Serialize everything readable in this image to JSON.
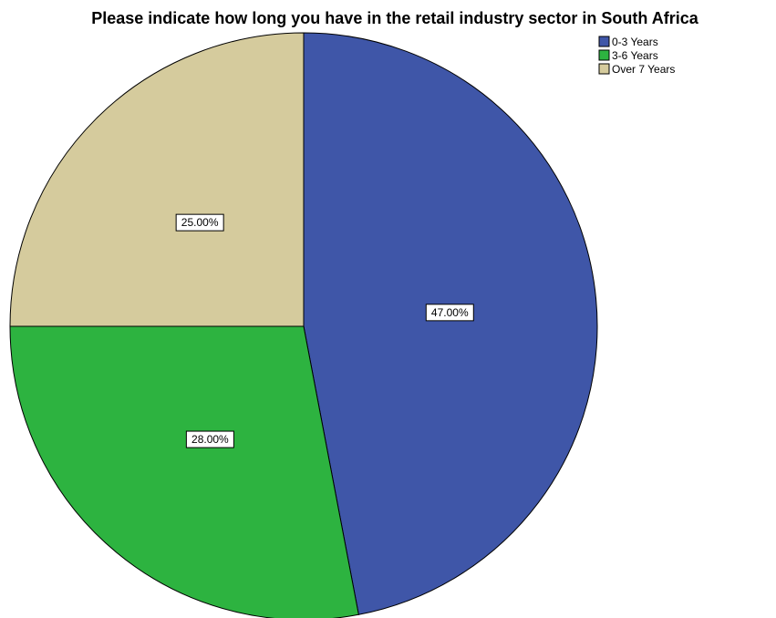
{
  "chart_data": {
    "type": "pie",
    "title": "Please indicate how long you have in the retail industry sector in South Africa",
    "slices": [
      {
        "label": "0-3 Years",
        "value": 47.0,
        "data_label": "47.00%",
        "color": "#3f56a8"
      },
      {
        "label": "3-6 Years",
        "value": 28.0,
        "data_label": "28.00%",
        "color": "#2db340"
      },
      {
        "label": "Over 7 Years",
        "value": 25.0,
        "data_label": "25.00%",
        "color": "#d5cb9d"
      }
    ],
    "start_angle": "12 o'clock",
    "direction": "clockwise",
    "legend_position": "top-right"
  }
}
